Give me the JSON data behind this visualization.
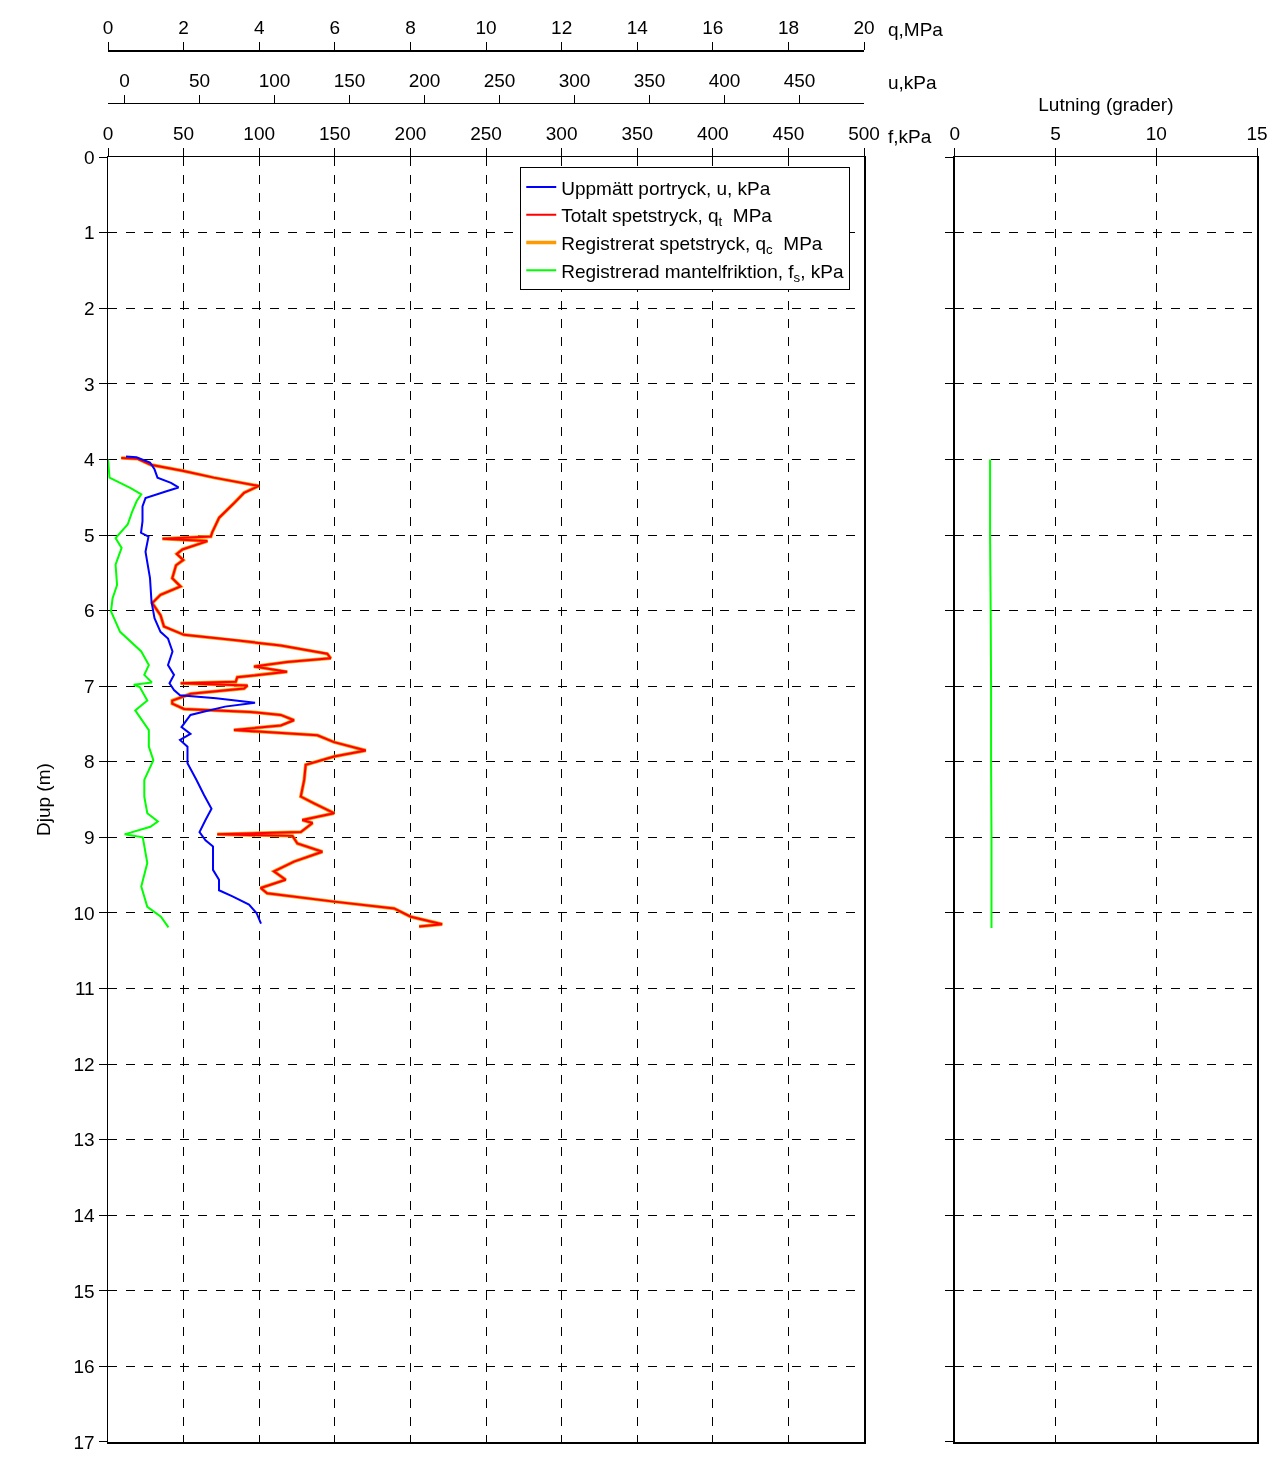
{
  "chart_data": [
    {
      "type": "line",
      "ylabel": "Djup (m)",
      "xlabel": "q,MPa",
      "x2label": "f,kPa",
      "xlim": [
        0,
        20
      ],
      "xticks": [
        0,
        2,
        4,
        6,
        8,
        10,
        12,
        14,
        16,
        18,
        20
      ],
      "x2lim": [
        0,
        500
      ],
      "x2ticks": [
        0,
        50,
        100,
        150,
        200,
        250,
        300,
        350,
        400,
        450,
        500
      ],
      "ylim": [
        17,
        0
      ],
      "yticks": [
        0,
        1,
        2,
        3,
        4,
        5,
        6,
        7,
        8,
        9,
        10,
        11,
        12,
        13,
        14,
        15,
        16,
        17
      ],
      "grid": true,
      "legend": "top right",
      "line_style": "solid",
      "series": [
        {
          "name": "Totalt spetstryck, q$_{t}$  MPa",
          "color": "#ff0000",
          "x": [
            0.35,
            0.78,
            1.13,
            1.97,
            2.8,
            3.99,
            3.6,
            3.33,
            2.94,
            2.76,
            2.72,
            1.44,
            2.63,
            1.97,
            1.82,
            1.99,
            1.8,
            1.7,
            1.92,
            1.39,
            1.17,
            1.39,
            1.48,
            2.01,
            3.33,
            4.57,
            5.8,
            5.89,
            4.74,
            3.86,
            4.74,
            3.42,
            3.38,
            1.92,
            3.69,
            3.6,
            2.19,
            1.7,
            1.7,
            2.01,
            3.77,
            4.57,
            4.92,
            4.57,
            3.33,
            5.54,
            5.98,
            6.82,
            5.98,
            5.23,
            5.19,
            5.1,
            5.45,
            5.98,
            5.14,
            5.41,
            5.1,
            2.89,
            4.88,
            5.01,
            5.67,
            4.92,
            4.39,
            4.7,
            4.04,
            4.21,
            5.98,
            7.57,
            8.01,
            8.84,
            8.23
          ],
          "values": [
            3.98,
            3.99,
            4.07,
            4.15,
            4.24,
            4.35,
            4.44,
            4.58,
            4.77,
            4.96,
            5.02,
            5.05,
            5.08,
            5.19,
            5.25,
            5.33,
            5.4,
            5.57,
            5.68,
            5.79,
            5.9,
            6.06,
            6.21,
            6.32,
            6.39,
            6.46,
            6.57,
            6.63,
            6.68,
            6.74,
            6.81,
            6.88,
            6.94,
            6.96,
            6.99,
            7.03,
            7.1,
            7.19,
            7.23,
            7.3,
            7.34,
            7.38,
            7.45,
            7.52,
            7.58,
            7.65,
            7.74,
            7.85,
            7.93,
            8.04,
            8.24,
            8.46,
            8.55,
            8.68,
            8.77,
            8.81,
            8.93,
            8.96,
            8.98,
            9.08,
            9.19,
            9.32,
            9.45,
            9.56,
            9.67,
            9.74,
            9.85,
            9.94,
            10.05,
            10.15,
            10.18
          ]
        },
        {
          "name": "Registrerat spetstryck, q$_{c}$  MPa",
          "color": "#ff9900",
          "x": [
            0.35,
            0.78,
            1.13,
            1.97,
            2.8,
            3.99,
            3.6,
            3.33,
            2.94,
            2.76,
            2.72,
            1.44,
            2.63,
            1.97,
            1.82,
            1.99,
            1.8,
            1.7,
            1.92,
            1.39,
            1.17,
            1.39,
            1.48,
            2.01,
            3.33,
            4.57,
            5.8,
            5.89,
            4.74,
            3.86,
            4.74,
            3.42,
            3.38,
            1.92,
            3.69,
            3.6,
            2.19,
            1.7,
            1.7,
            2.01,
            3.77,
            4.57,
            4.92,
            4.57,
            3.33,
            5.54,
            5.98,
            6.82,
            5.98,
            5.23,
            5.19,
            5.1,
            5.45,
            5.98,
            5.14,
            5.41,
            5.1,
            2.89,
            4.88,
            5.01,
            5.67,
            4.92,
            4.39,
            4.7,
            4.04,
            4.21,
            5.98,
            7.57,
            8.01,
            8.84,
            8.23
          ],
          "values": [
            3.98,
            3.99,
            4.07,
            4.15,
            4.24,
            4.35,
            4.44,
            4.58,
            4.77,
            4.96,
            5.02,
            5.05,
            5.08,
            5.19,
            5.25,
            5.33,
            5.4,
            5.57,
            5.68,
            5.79,
            5.9,
            6.06,
            6.21,
            6.32,
            6.39,
            6.46,
            6.57,
            6.63,
            6.68,
            6.74,
            6.81,
            6.88,
            6.94,
            6.96,
            6.99,
            7.03,
            7.1,
            7.19,
            7.23,
            7.3,
            7.34,
            7.38,
            7.45,
            7.52,
            7.58,
            7.65,
            7.74,
            7.85,
            7.93,
            8.04,
            8.24,
            8.46,
            8.55,
            8.68,
            8.77,
            8.81,
            8.93,
            8.96,
            8.98,
            9.08,
            9.19,
            9.32,
            9.45,
            9.56,
            9.67,
            9.74,
            9.85,
            9.94,
            10.05,
            10.15,
            10.18
          ]
        },
        {
          "name": "Registrerad mantelfriktion, f$_{s}$, kPa",
          "color": "#00ff00",
          "axis": "x2",
          "x": [
            0,
            1,
            15,
            22,
            19,
            16,
            13,
            5,
            9,
            5,
            6,
            3,
            2,
            8,
            22,
            27,
            24,
            29,
            17,
            21,
            26,
            18,
            27,
            27,
            30,
            24,
            24,
            26,
            33,
            28,
            11,
            23,
            26,
            22,
            26,
            35,
            40
          ],
          "values": [
            4.0,
            4.24,
            4.38,
            4.46,
            4.55,
            4.69,
            4.86,
            5.04,
            5.17,
            5.39,
            5.66,
            5.84,
            6.01,
            6.28,
            6.54,
            6.72,
            6.85,
            6.95,
            6.98,
            7.01,
            7.19,
            7.32,
            7.58,
            7.8,
            7.98,
            8.24,
            8.46,
            8.68,
            8.79,
            8.86,
            8.96,
            9.0,
            9.34,
            9.65,
            9.92,
            10.05,
            10.19
          ]
        }
      ]
    },
    {
      "type": "line",
      "xlabel": "u,kPa",
      "xlim": [
        -11,
        493
      ],
      "xticks": [
        0,
        50,
        100,
        150,
        200,
        250,
        300,
        350,
        400,
        450
      ],
      "ylim": [
        17,
        0
      ],
      "yticks": [
        0,
        1,
        2,
        3,
        4,
        5,
        6,
        7,
        8,
        9,
        10,
        11,
        12,
        13,
        14,
        15,
        16,
        17
      ],
      "tick_labels": "x",
      "line_style": "solid",
      "series": [
        {
          "name": "Uppmätt portryck, u, kPa",
          "color": "#0000ff",
          "x": [
            1,
            8,
            17,
            20,
            22,
            31,
            36,
            28,
            14,
            12,
            12,
            11,
            16,
            14,
            17,
            18,
            20,
            24,
            29,
            32,
            29,
            33,
            30,
            33,
            37,
            61,
            87,
            67,
            52,
            44,
            38,
            44,
            37,
            42,
            42,
            48,
            53,
            58,
            54,
            50,
            54,
            59,
            59,
            63,
            63,
            72,
            83,
            88,
            91
          ],
          "values": [
            3.96,
            3.97,
            4.04,
            4.13,
            4.24,
            4.31,
            4.37,
            4.42,
            4.51,
            4.62,
            4.82,
            4.97,
            5.02,
            5.22,
            5.57,
            5.88,
            6.1,
            6.28,
            6.37,
            6.54,
            6.72,
            6.85,
            6.96,
            7.05,
            7.12,
            7.16,
            7.22,
            7.27,
            7.34,
            7.38,
            7.54,
            7.63,
            7.71,
            7.8,
            8.02,
            8.24,
            8.44,
            8.62,
            8.77,
            8.93,
            9.04,
            9.12,
            9.43,
            9.56,
            9.7,
            9.78,
            9.89,
            10.0,
            10.14
          ]
        }
      ]
    },
    {
      "type": "line",
      "xlabel": "Lutning (grader)",
      "xlim": [
        0,
        15
      ],
      "xticks": [
        0,
        5,
        10,
        15
      ],
      "ylim": [
        17,
        0
      ],
      "yticks": [
        0,
        1,
        2,
        3,
        4,
        5,
        6,
        7,
        8,
        9,
        10,
        11,
        12,
        13,
        14,
        15,
        16,
        17
      ],
      "tick_labels": "x",
      "grid": true,
      "line_style": "solid",
      "series": [
        {
          "color": "#00ff00",
          "x": [
            1.75,
            1.75,
            1.78,
            1.8,
            1.8,
            1.82,
            1.82
          ],
          "values": [
            4.0,
            5.0,
            6.0,
            7.0,
            8.0,
            9.0,
            10.2
          ]
        }
      ]
    }
  ]
}
